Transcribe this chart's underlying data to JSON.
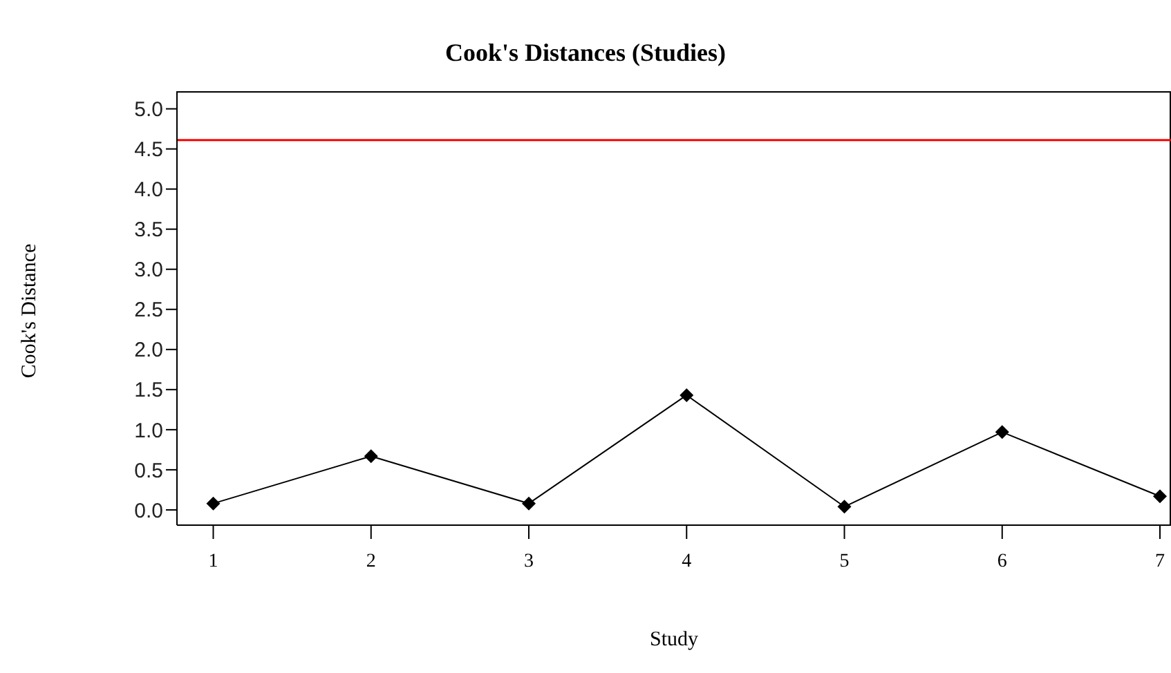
{
  "chart_data": {
    "type": "line",
    "title": "Cook's Distances (Studies)",
    "xlabel": "Study",
    "ylabel": "Cook's Distance",
    "x": [
      1,
      2,
      3,
      4,
      5,
      6,
      7
    ],
    "series": [
      {
        "color": "#000000",
        "values": [
          0.08,
          0.67,
          0.08,
          1.43,
          0.04,
          0.97,
          0.17
        ]
      }
    ],
    "xlim": [
      0.77,
      7.07
    ],
    "xticks": [
      1,
      2,
      3,
      4,
      5,
      6,
      7
    ],
    "ylim": [
      -0.19,
      5.22
    ],
    "yticks": [
      {
        "value": 0,
        "label": "0.0"
      },
      {
        "value": 0.5,
        "label": "0.5"
      },
      {
        "value": 1,
        "label": "1.0"
      },
      {
        "value": 1.5,
        "label": "1.5"
      },
      {
        "value": 2,
        "label": "2.0"
      },
      {
        "value": 2.5,
        "label": "2.5"
      },
      {
        "value": 3,
        "label": "3.0"
      },
      {
        "value": 3.5,
        "label": "3.5"
      },
      {
        "value": 4,
        "label": "4.0"
      },
      {
        "value": 4.5,
        "label": "4.5"
      },
      {
        "value": 5,
        "label": "5.0"
      }
    ],
    "ref_lines": [
      {
        "axis": "y",
        "value": 4.61,
        "color": "#ff0000"
      }
    ],
    "marker": "diamond",
    "line_style": "solid",
    "grid": false,
    "legend": false
  }
}
